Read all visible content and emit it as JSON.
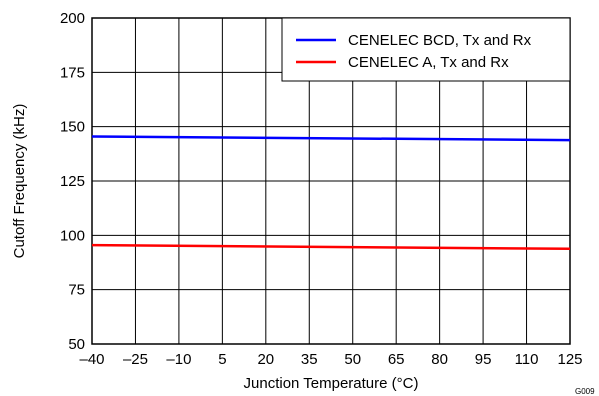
{
  "chart_data": {
    "type": "line",
    "title": "",
    "xlabel": "Junction Temperature (°C)",
    "ylabel": "Cutoff Frequency (kHz)",
    "xlim": [
      -40,
      125
    ],
    "ylim": [
      50,
      200
    ],
    "x_ticks": [
      -40,
      -25,
      -10,
      5,
      20,
      35,
      50,
      65,
      80,
      95,
      110,
      125
    ],
    "x_tick_labels": [
      "–40",
      "–25",
      "–10",
      "5",
      "20",
      "35",
      "50",
      "65",
      "80",
      "95",
      "110",
      "125"
    ],
    "y_ticks": [
      50,
      75,
      100,
      125,
      150,
      175,
      200
    ],
    "y_tick_labels": [
      "50",
      "75",
      "100",
      "125",
      "150",
      "175",
      "200"
    ],
    "grid": true,
    "legend": "top-right",
    "figure_id": "G009",
    "series": [
      {
        "name": "CENELEC BCD, Tx and Rx",
        "color": "#0000ff",
        "x": [
          -40,
          125
        ],
        "values": [
          145.5,
          143.8
        ]
      },
      {
        "name": "CENELEC A, Tx and Rx",
        "color": "#ff0000",
        "x": [
          -40,
          125
        ],
        "values": [
          95.5,
          93.8
        ]
      }
    ]
  }
}
